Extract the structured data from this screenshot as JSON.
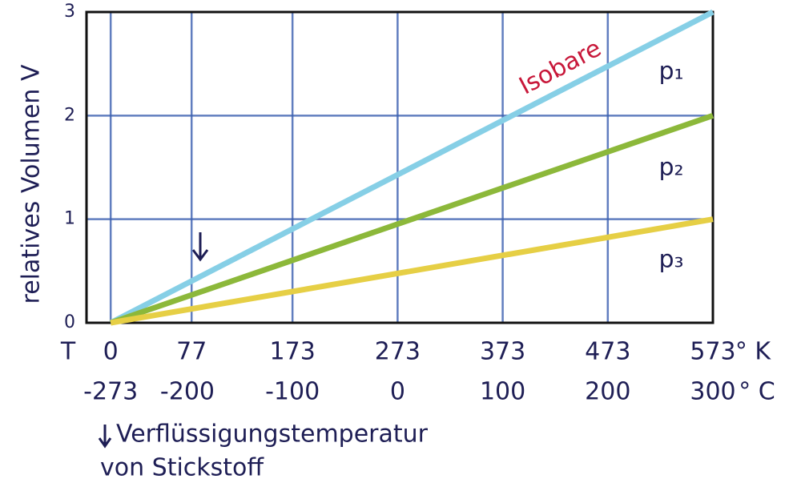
{
  "chart_data": {
    "type": "line",
    "y_label": "relatives Volumen V",
    "x_label": "T",
    "x_unit": "° K",
    "x2_unit": "° C",
    "xlim": [
      -23,
      573
    ],
    "xticks": [
      0,
      77,
      173,
      273,
      373,
      473,
      573
    ],
    "x2lim": [
      -296,
      300
    ],
    "x2ticks": [
      -273,
      -200,
      -100,
      0,
      100,
      200,
      300
    ],
    "ylim": [
      0,
      3
    ],
    "yticks": [
      0,
      1,
      2,
      3
    ],
    "grid": true,
    "x": [
      0,
      573
    ],
    "series": [
      {
        "name": "p₁",
        "color": "#86cfe6",
        "values": [
          0,
          3
        ]
      },
      {
        "name": "p₂",
        "color": "#8cb83a",
        "values": [
          0,
          2
        ]
      },
      {
        "name": "p₃",
        "color": "#e6cf45",
        "values": [
          0,
          1
        ]
      }
    ],
    "annotations": [
      "Isobare",
      "Verflüssigungstemperatur",
      "von Stickstoff"
    ]
  }
}
